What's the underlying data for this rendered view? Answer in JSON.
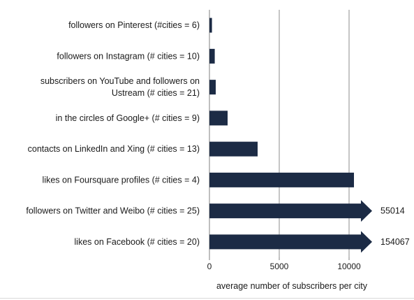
{
  "chart_data": {
    "type": "bar",
    "orientation": "horizontal",
    "categories": [
      [
        "followers on Pinterest (#cities = 6)"
      ],
      [
        "followers on Instagram (# cities = 10)"
      ],
      [
        "subscribers on YouTube and followers on",
        "Ustream (# cities = 21)"
      ],
      [
        "in the circles of Google+ (# cities = 9)"
      ],
      [
        "contacts on LinkedIn and Xing (# cities = 13)"
      ],
      [
        "likes on Foursquare profiles (# cities = 4)"
      ],
      [
        "followers on Twitter and Weibo (# cities = 25)"
      ],
      [
        "likes on Facebook (# cities = 20)"
      ]
    ],
    "values": [
      180,
      380,
      450,
      1300,
      3450,
      10350,
      55014,
      154067
    ],
    "value_labels": [
      "",
      "",
      "",
      "",
      "",
      "",
      "55014",
      "154067"
    ],
    "truncated": [
      false,
      false,
      false,
      false,
      false,
      false,
      true,
      true
    ],
    "xlabel": "average number of subscribers per city",
    "ylabel": "",
    "xlim": [
      0,
      12000
    ],
    "xticks": [
      0,
      5000,
      10000
    ],
    "xtick_labels": [
      "0",
      "5000",
      "10000"
    ],
    "grid": true,
    "bar_color": "#1c2b45"
  }
}
